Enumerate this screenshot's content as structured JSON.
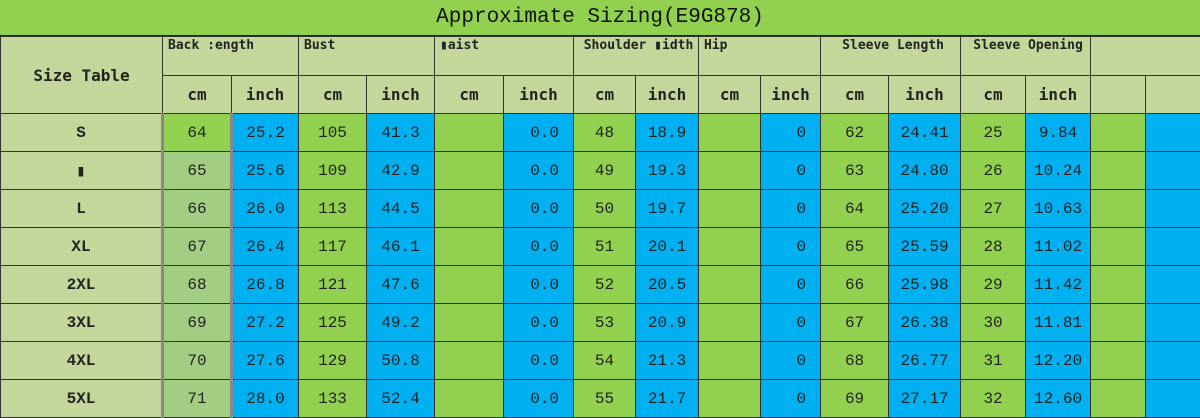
{
  "title": "Approximate Sizing(E9G878)",
  "size_table_label": "Size Table",
  "groups": [
    "Back :ength",
    "Bust",
    "▮aist",
    "Shoulder ▮idth",
    "Hip",
    "Sleeve Length",
    "Sleeve Opening",
    ""
  ],
  "units": {
    "cm": "cm",
    "inch": "inch"
  },
  "colors": {
    "title_bg": "#92d050",
    "header_bg": "#c4d79b",
    "cm_bg": "#92d050",
    "inch_bg": "#00b0f0"
  },
  "rows": [
    {
      "size": "S",
      "v": [
        "64",
        "25.2",
        "105",
        "41.3",
        "",
        "0.0",
        "48",
        "18.9",
        "",
        "0",
        "62",
        "24.41",
        "25",
        "9.84",
        "",
        ""
      ]
    },
    {
      "size": "▮",
      "v": [
        "65",
        "25.6",
        "109",
        "42.9",
        "",
        "0.0",
        "49",
        "19.3",
        "",
        "0",
        "63",
        "24.80",
        "26",
        "10.24",
        "",
        ""
      ]
    },
    {
      "size": "L",
      "v": [
        "66",
        "26.0",
        "113",
        "44.5",
        "",
        "0.0",
        "50",
        "19.7",
        "",
        "0",
        "64",
        "25.20",
        "27",
        "10.63",
        "",
        ""
      ]
    },
    {
      "size": "XL",
      "v": [
        "67",
        "26.4",
        "117",
        "46.1",
        "",
        "0.0",
        "51",
        "20.1",
        "",
        "0",
        "65",
        "25.59",
        "28",
        "11.02",
        "",
        ""
      ]
    },
    {
      "size": "2XL",
      "v": [
        "68",
        "26.8",
        "121",
        "47.6",
        "",
        "0.0",
        "52",
        "20.5",
        "",
        "0",
        "66",
        "25.98",
        "29",
        "11.42",
        "",
        ""
      ]
    },
    {
      "size": "3XL",
      "v": [
        "69",
        "27.2",
        "125",
        "49.2",
        "",
        "0.0",
        "53",
        "20.9",
        "",
        "0",
        "67",
        "26.38",
        "30",
        "11.81",
        "",
        ""
      ]
    },
    {
      "size": "4XL",
      "v": [
        "70",
        "27.6",
        "129",
        "50.8",
        "",
        "0.0",
        "54",
        "21.3",
        "",
        "0",
        "68",
        "26.77",
        "31",
        "12.20",
        "",
        ""
      ]
    },
    {
      "size": "5XL",
      "v": [
        "71",
        "28.0",
        "133",
        "52.4",
        "",
        "0.0",
        "55",
        "21.7",
        "",
        "0",
        "69",
        "27.17",
        "32",
        "12.60",
        "",
        ""
      ]
    }
  ]
}
